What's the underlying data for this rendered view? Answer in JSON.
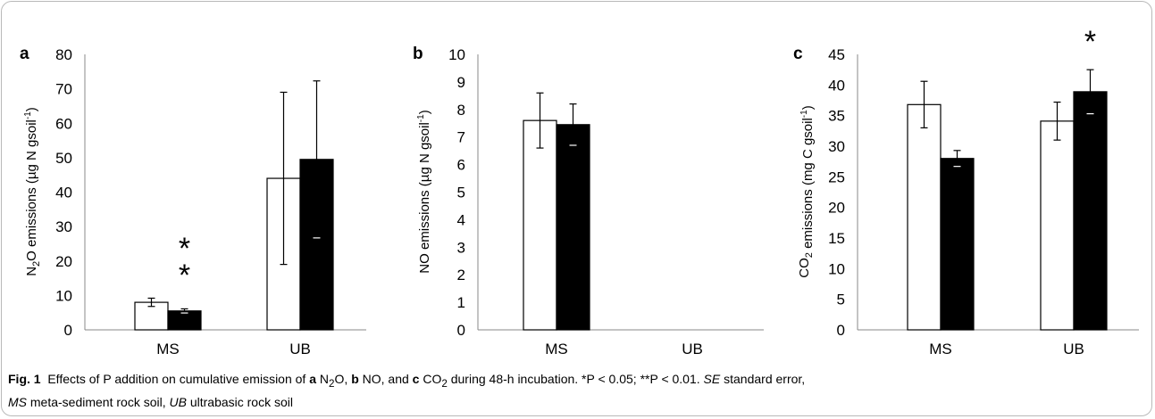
{
  "chart_data": [
    {
      "panel": "a",
      "type": "bar",
      "ylabel": "N2O emissions (µg N gsoil-1)",
      "ylim": [
        0,
        80
      ],
      "yticks": [
        0,
        10,
        20,
        30,
        40,
        50,
        60,
        70,
        80
      ],
      "categories": [
        "MS",
        "UB"
      ],
      "series": [
        {
          "fill": "#ffffff",
          "values": [
            8,
            44
          ],
          "errors": [
            1.2,
            25
          ]
        },
        {
          "fill": "#000000",
          "values": [
            5.5,
            49.5
          ],
          "errors": [
            0.6,
            22.8
          ]
        }
      ],
      "significance": [
        "**",
        ""
      ],
      "grid": false
    },
    {
      "panel": "b",
      "type": "bar",
      "ylabel": "NO emissions (µg N gsoil-1)",
      "ylim": [
        0,
        10
      ],
      "yticks": [
        0,
        1,
        2,
        3,
        4,
        5,
        6,
        7,
        8,
        9,
        10
      ],
      "categories": [
        "MS",
        "UB"
      ],
      "series": [
        {
          "fill": "#ffffff",
          "values": [
            7.6,
            null
          ],
          "errors": [
            1.0,
            null
          ]
        },
        {
          "fill": "#000000",
          "values": [
            7.45,
            null
          ],
          "errors": [
            0.75,
            null
          ]
        }
      ],
      "significance": [
        "",
        ""
      ],
      "grid": false
    },
    {
      "panel": "c",
      "type": "bar",
      "ylabel": "CO2 emissions (mg C gsoil-1)",
      "ylim": [
        0,
        45
      ],
      "yticks": [
        0,
        5,
        10,
        15,
        20,
        25,
        30,
        35,
        40,
        45
      ],
      "categories": [
        "MS",
        "UB"
      ],
      "series": [
        {
          "fill": "#ffffff",
          "values": [
            36.8,
            34.1
          ],
          "errors": [
            3.8,
            3.1
          ]
        },
        {
          "fill": "#000000",
          "values": [
            28,
            38.9
          ],
          "errors": [
            1.3,
            3.6
          ]
        }
      ],
      "significance": [
        "",
        "*"
      ],
      "grid": false
    }
  ],
  "caption": {
    "label": "Fig. 1",
    "t1": "Effects of P addition on cumulative emission of ",
    "a": "a",
    "n2o": "N",
    "n2o_sub": "2",
    "n2o_end": "O, ",
    "b": "b",
    "no": "NO, and ",
    "c": "c",
    "co2": "CO",
    "co2_sub": "2",
    "t2": " during 48-h incubation. *P < 0.05; **P < 0.01. ",
    "se": "SE",
    "t3": " standard error,",
    "ms": "MS",
    "t4": " meta-sediment rock soil, ",
    "ub": "UB",
    "t5": " ultrabasic rock soil"
  }
}
